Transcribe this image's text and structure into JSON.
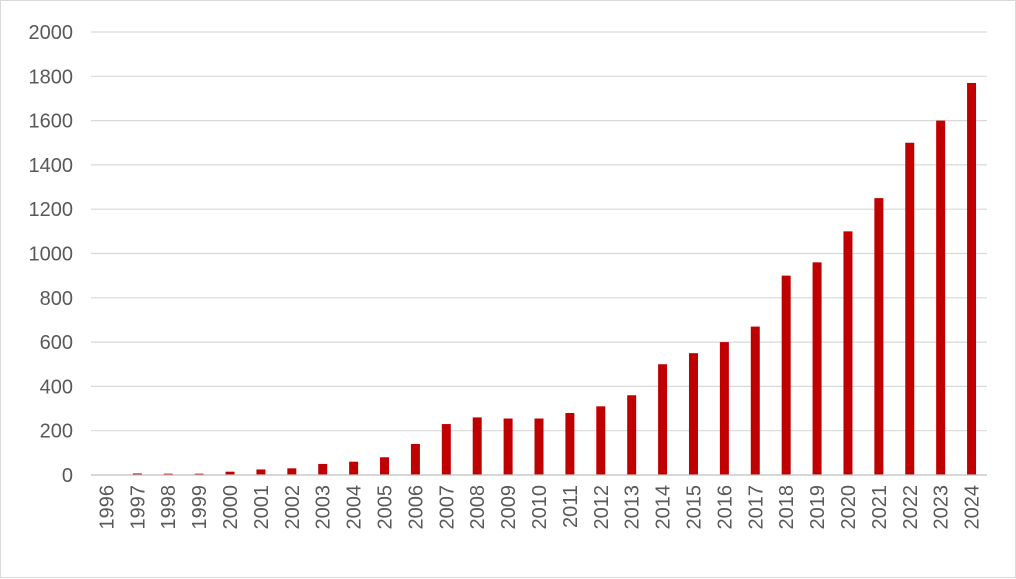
{
  "chart_data": {
    "type": "bar",
    "title": "",
    "xlabel": "",
    "ylabel": "",
    "categories": [
      "1996",
      "1997",
      "1998",
      "1999",
      "2000",
      "2001",
      "2002",
      "2003",
      "2004",
      "2005",
      "2006",
      "2007",
      "2008",
      "2009",
      "2010",
      "2011",
      "2012",
      "2013",
      "2014",
      "2015",
      "2016",
      "2017",
      "2018",
      "2019",
      "2020",
      "2021",
      "2022",
      "2023",
      "2024"
    ],
    "values": [
      0,
      7,
      6,
      6,
      15,
      25,
      30,
      50,
      60,
      80,
      140,
      230,
      260,
      255,
      255,
      280,
      310,
      360,
      500,
      550,
      600,
      670,
      900,
      960,
      1100,
      1250,
      1500,
      1600,
      1770
    ],
    "ylim": [
      0,
      2000
    ],
    "yticks": [
      0,
      200,
      400,
      600,
      800,
      1000,
      1200,
      1400,
      1600,
      1800,
      2000
    ],
    "grid": true,
    "legend": "none",
    "colors": {
      "bar": "#c00000",
      "grid": "#d9d9d9",
      "axis": "#bfbfbf",
      "text": "#595959"
    }
  }
}
